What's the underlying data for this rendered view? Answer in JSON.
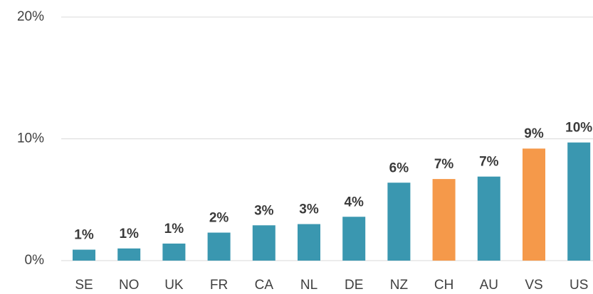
{
  "chart_data": {
    "type": "bar",
    "categories": [
      "SE",
      "NO",
      "UK",
      "FR",
      "CA",
      "NL",
      "DE",
      "NZ",
      "CH",
      "AU",
      "VS",
      "US"
    ],
    "values": [
      0.9,
      1.0,
      1.4,
      2.3,
      2.9,
      3.0,
      3.6,
      6.4,
      6.7,
      6.9,
      9.2,
      9.7
    ],
    "value_labels": [
      "1%",
      "1%",
      "1%",
      "2%",
      "3%",
      "3%",
      "4%",
      "6%",
      "7%",
      "7%",
      "9%",
      "10%"
    ],
    "colors": [
      "#3a97b0",
      "#3a97b0",
      "#3a97b0",
      "#3a97b0",
      "#3a97b0",
      "#3a97b0",
      "#3a97b0",
      "#3a97b0",
      "#f5994a",
      "#3a97b0",
      "#f5994a",
      "#3a97b0"
    ],
    "ylim": [
      0,
      20
    ],
    "yticks": [
      {
        "value": 0,
        "label": "0%"
      },
      {
        "value": 10,
        "label": "10%"
      },
      {
        "value": 20,
        "label": "20%"
      }
    ],
    "grid": true
  }
}
